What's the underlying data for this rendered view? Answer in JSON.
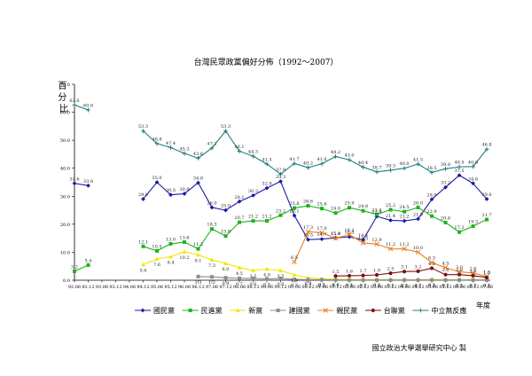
{
  "chart_data": {
    "type": "line",
    "title": "台灣民眾政黨偏好分佈（1992～2007）",
    "xlabel": "年度",
    "ylabel": "百分比",
    "ylim": [
      0,
      70
    ],
    "yticks": [
      "0.0",
      "10.0",
      "20.0",
      "30.0",
      "40.0",
      "50.0",
      "60.0",
      "70.0"
    ],
    "grid": false,
    "legend_position": "bottom",
    "source": "國立政治大學選舉研究中心 製",
    "x": [
      "92.06",
      "92.12",
      "93.06",
      "93.12",
      "94.06",
      "94.12",
      "95.06",
      "95.12",
      "96.06",
      "96.12",
      "97.06",
      "97.12",
      "98.06",
      "98.12",
      "99.06",
      "99.12",
      "00.06",
      "00.12",
      "01.06",
      "01.12",
      "02.06",
      "02.12",
      "03.06",
      "03.12",
      "04.06",
      "04.12",
      "05.06",
      "05.12",
      "06.06",
      "06.12",
      "07.06"
    ],
    "series": [
      {
        "name": "國民黨",
        "color": "#1a1aa6",
        "marker": "diamond",
        "values": [
          34.6,
          33.8,
          null,
          null,
          null,
          29.0,
          35.0,
          30.5,
          30.9,
          34.8,
          26.0,
          25.0,
          28.1,
          30.3,
          32.9,
          35.3,
          23.1,
          14.5,
          14.7,
          15.1,
          15.5,
          14.4,
          22.8,
          21.4,
          21.2,
          21.9,
          28.9,
          33.2,
          37.5,
          34.6,
          29.0
        ]
      },
      {
        "name": "民進黨",
        "color": "#1db31d",
        "marker": "square",
        "values": [
          3.2,
          5.4,
          null,
          null,
          null,
          12.1,
          10.5,
          13.0,
          13.6,
          11.2,
          18.3,
          15.8,
          20.7,
          21.2,
          21.2,
          23.2,
          25.8,
          26.6,
          25.6,
          24.0,
          25.9,
          24.8,
          23.5,
          25.2,
          24.5,
          26.0,
          22.9,
          20.6,
          17.2,
          19.3,
          21.7
        ]
      },
      {
        "name": "新黨",
        "color": "#f2e600",
        "marker": "triangle",
        "values": [
          null,
          null,
          null,
          null,
          null,
          5.6,
          7.6,
          8.4,
          10.2,
          9.1,
          7.3,
          6.0,
          4.5,
          3.5,
          4.0,
          3.5,
          1.9,
          0.9,
          0.5,
          0.4,
          0.3,
          0.2,
          0.3,
          0.2,
          0.2,
          0.2,
          0.3,
          0.2,
          0.2,
          0.2,
          0.2
        ]
      },
      {
        "name": "建國黨",
        "color": "#8c8c8c",
        "marker": "square",
        "values": [
          null,
          null,
          null,
          null,
          null,
          null,
          null,
          null,
          null,
          1.3,
          1.2,
          0.9,
          0.7,
          0.6,
          0.5,
          0.6,
          0.3,
          0.2,
          0.2,
          0.1,
          0.1,
          0.1,
          0.1,
          0.1,
          0.1,
          0.1,
          0.1,
          0.1,
          0.1,
          0.1,
          0.1
        ]
      },
      {
        "name": "親民黨",
        "color": "#f07d1a",
        "marker": "x",
        "values": [
          null,
          null,
          null,
          null,
          null,
          null,
          null,
          null,
          null,
          null,
          null,
          null,
          null,
          null,
          null,
          null,
          6.5,
          17.3,
          17.0,
          15.0,
          16.3,
          13.3,
          12.9,
          11.2,
          11.2,
          10.0,
          6.3,
          4.5,
          3.0,
          2.6,
          1.3
        ]
      },
      {
        "name": "台聯黨",
        "color": "#7a1212",
        "marker": "circle",
        "values": [
          null,
          null,
          null,
          null,
          null,
          null,
          null,
          null,
          null,
          null,
          null,
          null,
          null,
          null,
          null,
          null,
          null,
          null,
          null,
          1.5,
          1.6,
          1.7,
          1.9,
          2.5,
          3.1,
          3.2,
          4.3,
          2.0,
          2.0,
          1.6,
          1.0
        ]
      },
      {
        "name": "中立無反應",
        "color": "#1f7f7f",
        "marker": "plus",
        "values": [
          62.6,
          60.8,
          null,
          null,
          null,
          53.3,
          48.8,
          47.4,
          45.3,
          43.6,
          47.2,
          53.3,
          46.1,
          44.3,
          41.5,
          37.9,
          41.7,
          40.2,
          41.6,
          44.2,
          43.0,
          40.4,
          38.7,
          39.3,
          40.0,
          41.5,
          38.5,
          39.8,
          40.5,
          40.6,
          46.8
        ]
      }
    ]
  }
}
